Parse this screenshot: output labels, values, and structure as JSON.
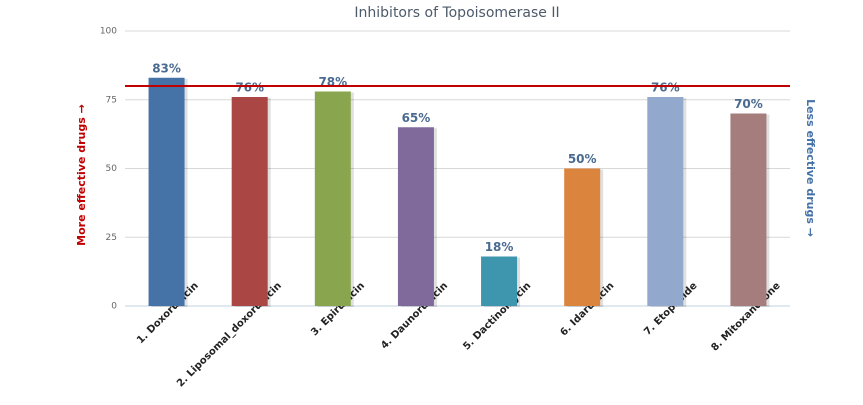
{
  "chart_data": {
    "type": "bar",
    "title": "Inhibitors of Topoisomerase II",
    "categories": [
      "1. Doxorubicin",
      "2. Liposomal_doxorubicin",
      "3. Epirubicin",
      "4. Daunorubicin",
      "5. Dactinomycin",
      "6. Idarubicin",
      "7. Etoposide",
      "8. Mitoxandrone"
    ],
    "values": [
      83,
      76,
      78,
      65,
      18,
      50,
      76,
      70
    ],
    "value_labels": [
      "83%",
      "76%",
      "78%",
      "65%",
      "18%",
      "50%",
      "76%",
      "70%"
    ],
    "colors": [
      "#4572a7",
      "#aa4643",
      "#89a54e",
      "#80699b",
      "#3d96ae",
      "#db843d",
      "#92a8cd",
      "#a47d7c"
    ],
    "ylim": [
      0,
      100
    ],
    "yticks": [
      0,
      25,
      50,
      75,
      100
    ],
    "grid": true,
    "reference_line": {
      "value": 80,
      "color": "#c00000"
    },
    "left_annotation": "More effective drugs →",
    "right_annotation": "Less effective drugs →"
  }
}
